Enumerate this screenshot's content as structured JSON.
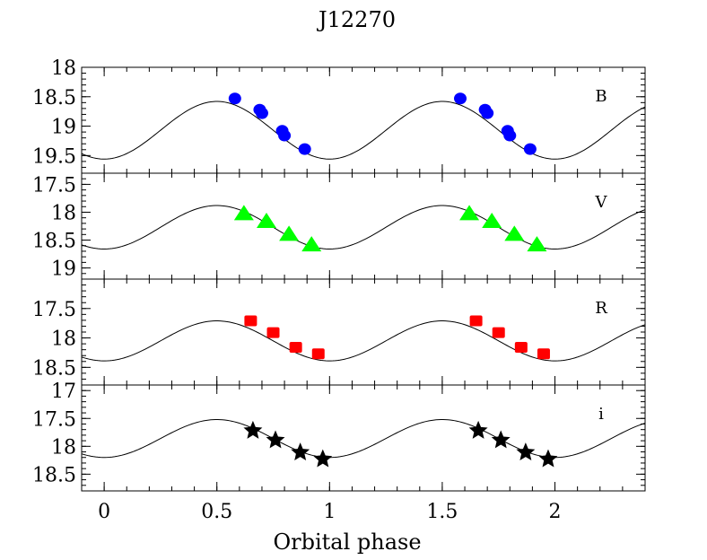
{
  "chart_data": {
    "type": "scatter",
    "title": "J12270",
    "xlabel": "Orbital phase",
    "xlim": [
      -0.1,
      2.4
    ],
    "x_ticks": [
      0,
      0.5,
      1,
      1.5,
      2
    ],
    "x_tick_labels": [
      "0",
      "0.5",
      "1",
      "1.5",
      "2"
    ],
    "panels": [
      {
        "band": "B",
        "ylim": [
          19.8,
          18
        ],
        "y_ticks": [
          18,
          18.5,
          19,
          19.5
        ],
        "y_tick_labels": [
          "18",
          "18.5",
          "19",
          "19.5"
        ],
        "marker": "circle",
        "color": "#0000ff",
        "curve": {
          "mean": 19.07,
          "amplitude": 0.49
        },
        "points": [
          {
            "x": 0.58,
            "y": 18.53
          },
          {
            "x": 0.69,
            "y": 18.72
          },
          {
            "x": 0.7,
            "y": 18.78
          },
          {
            "x": 0.79,
            "y": 19.08
          },
          {
            "x": 0.8,
            "y": 19.16
          },
          {
            "x": 0.89,
            "y": 19.39
          },
          {
            "x": 1.58,
            "y": 18.53
          },
          {
            "x": 1.69,
            "y": 18.72
          },
          {
            "x": 1.7,
            "y": 18.78
          },
          {
            "x": 1.79,
            "y": 19.08
          },
          {
            "x": 1.8,
            "y": 19.16
          },
          {
            "x": 1.89,
            "y": 19.39
          }
        ]
      },
      {
        "band": "V",
        "ylim": [
          19.2,
          17.3
        ],
        "y_ticks": [
          17.5,
          18,
          18.5,
          19
        ],
        "y_tick_labels": [
          "17.5",
          "18",
          "18.5",
          "19"
        ],
        "marker": "triangle",
        "color": "#00ff00",
        "curve": {
          "mean": 18.27,
          "amplitude": 0.39
        },
        "points": [
          {
            "x": 0.62,
            "y": 18.03
          },
          {
            "x": 0.72,
            "y": 18.17
          },
          {
            "x": 0.82,
            "y": 18.4
          },
          {
            "x": 0.92,
            "y": 18.59
          },
          {
            "x": 1.62,
            "y": 18.03
          },
          {
            "x": 1.72,
            "y": 18.17
          },
          {
            "x": 1.82,
            "y": 18.4
          },
          {
            "x": 1.92,
            "y": 18.59
          }
        ]
      },
      {
        "band": "R",
        "ylim": [
          18.8,
          17.0
        ],
        "y_ticks": [
          17.5,
          18,
          18.5
        ],
        "y_tick_labels": [
          "17.5",
          "18",
          "18.5"
        ],
        "marker": "square",
        "color": "#ff0000",
        "curve": {
          "mean": 18.05,
          "amplitude": 0.34
        },
        "points": [
          {
            "x": 0.65,
            "y": 17.71
          },
          {
            "x": 0.75,
            "y": 17.91
          },
          {
            "x": 0.85,
            "y": 18.16
          },
          {
            "x": 0.95,
            "y": 18.27
          },
          {
            "x": 1.65,
            "y": 17.71
          },
          {
            "x": 1.75,
            "y": 17.91
          },
          {
            "x": 1.85,
            "y": 18.16
          },
          {
            "x": 1.95,
            "y": 18.27
          }
        ]
      },
      {
        "band": "i",
        "ylim": [
          18.8,
          16.9
        ],
        "y_ticks": [
          17,
          17.5,
          18,
          18.5
        ],
        "y_tick_labels": [
          "17",
          "17.5",
          "18",
          "18.5"
        ],
        "marker": "star",
        "color": "#000000",
        "curve": {
          "mean": 17.86,
          "amplitude": 0.34
        },
        "points": [
          {
            "x": 0.66,
            "y": 17.72
          },
          {
            "x": 0.76,
            "y": 17.89
          },
          {
            "x": 0.87,
            "y": 18.11
          },
          {
            "x": 0.97,
            "y": 18.23
          },
          {
            "x": 1.66,
            "y": 17.72
          },
          {
            "x": 1.76,
            "y": 17.89
          },
          {
            "x": 1.87,
            "y": 18.11
          },
          {
            "x": 1.97,
            "y": 18.23
          }
        ]
      }
    ]
  }
}
